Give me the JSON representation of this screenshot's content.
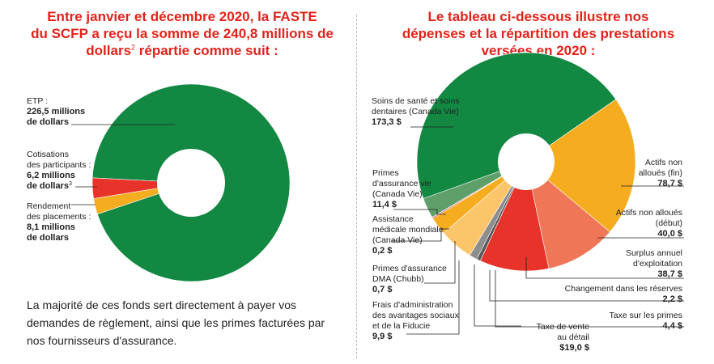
{
  "left_title": {
    "line1": "Entre janvier et décembre 2020, la FASTE",
    "line2": "du SCFP a reçu la somme de 240,8 millions de",
    "line3_text": "dollars",
    "line3_sup": "2",
    "line3_rest": " répartie comme suit :"
  },
  "right_title": {
    "line1": "Le tableau ci-dessous illustre nos",
    "line2": "dépenses et la répartition des prestations",
    "line3": "versées en 2020 :"
  },
  "left_text": "La majorité de ces fonds sert directement à payer vos demandes de règlement, ainsi que les primes facturées par nos fournisseurs d'assurance.",
  "colors": {
    "green": "#128842",
    "yellow": "#f5ad1f",
    "red": "#e8332a",
    "salmon": "#ef7758",
    "light_orange": "#fcc56a",
    "light_green": "#5e9f6a",
    "pink": "#f1a0a0",
    "dark_gray": "#5a5a5a",
    "gray": "#8d8d8d",
    "title_red": "#e2231a"
  },
  "chart_data": [
    {
      "type": "pie",
      "title": "",
      "total": 240.8,
      "slices": [
        {
          "label_lines": [
            "ETP :"
          ],
          "value_lines": [
            "226,5 millions",
            "de dollars"
          ],
          "value": 226.5,
          "color": "#128842"
        },
        {
          "label_lines": [
            "Cotisations",
            "des participants :"
          ],
          "value_lines": [
            "6,2 millions",
            "de dollars"
          ],
          "value_sup": "3",
          "value": 6.2,
          "color": "#f5ad1f"
        },
        {
          "label_lines": [
            "Rendement",
            "des placements :"
          ],
          "value_lines": [
            "8,1 millions",
            "de dollars"
          ],
          "value": 8.1,
          "color": "#e8332a"
        }
      ]
    },
    {
      "type": "pie",
      "title": "",
      "slices": [
        {
          "label_lines": [
            "Soins de santé et soins",
            "dentaires (Canada Vie)"
          ],
          "value_text": "173,3 $",
          "value": 173.3,
          "color": "#128842"
        },
        {
          "label_lines": [
            "Actifs non",
            "alloués (fin)"
          ],
          "value_text": "78,7 $",
          "value": 78.7,
          "color": "#f5ad1f"
        },
        {
          "label_lines": [
            "Actifs non alloués",
            "(début)"
          ],
          "value_text": "40,0 $",
          "value": 40.0,
          "color": "#ef7758"
        },
        {
          "label_lines": [
            "Surplus annuel",
            "d'exploitation"
          ],
          "value_text": "38,7 $",
          "value": 38.7,
          "color": "#e8332a"
        },
        {
          "label_lines": [
            "Changement dans les réserves"
          ],
          "value_text": "2,2 $",
          "value": 2.2,
          "color": "#5a5a5a"
        },
        {
          "label_lines": [
            "Taxe sur les primes"
          ],
          "value_text": "4,4 $",
          "value": 4.4,
          "color": "#8d8d8d"
        },
        {
          "label_lines": [
            "Taxe de vente",
            "au détail"
          ],
          "value_text": "$19,0 $",
          "value": 19.0,
          "color": "#fcc56a"
        },
        {
          "label_lines": [
            "Frais d'administration",
            "des avantages sociaux",
            "et de la Fiducie"
          ],
          "value_text": "9,9 $",
          "value": 9.9,
          "color": "#f5ad1f"
        },
        {
          "label_lines": [
            "Primes d'assurance",
            "DMA (Chubb)"
          ],
          "value_text": "0,7 $",
          "value": 0.7,
          "color": "#e8332a"
        },
        {
          "label_lines": [
            "Assistance",
            "médicale mondiale",
            "(Canada Vie)"
          ],
          "value_text": "0,2 $",
          "value": 0.2,
          "color": "#f1a0a0"
        },
        {
          "label_lines": [
            "Primes",
            "d'assurance vie",
            "(Canada Vie)"
          ],
          "value_text": "11,4 $",
          "value": 11.4,
          "color": "#5e9f6a"
        }
      ]
    }
  ]
}
